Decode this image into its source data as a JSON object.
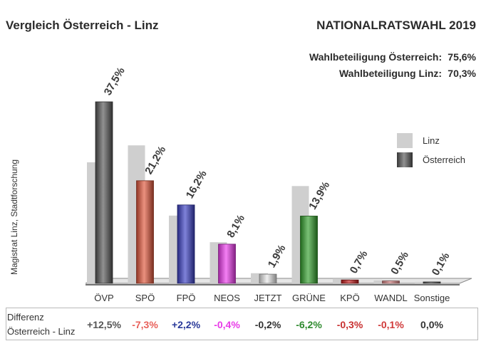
{
  "header": {
    "title_left": "Vergleich Österreich - Linz",
    "title_right": "NATIONALRATSWAHL 2019"
  },
  "turnout": {
    "austria_label": "Wahlbeteiligung Österreich:",
    "austria_value": "75,6%",
    "linz_label": "Wahlbeteiligung Linz:",
    "linz_value": "70,3%"
  },
  "side_label": "Magistrat Linz, Stadtforschung",
  "colors": {
    "linz": "#cfcfcf",
    "OEVP": "#555555",
    "SPOE": "#e0553a",
    "FPOE": "#3a3fc4",
    "NEOS": "#ee3bee",
    "JETZT": "#e8e8e8",
    "GRUENE": "#33a02c",
    "KPOE": "#c41a1a",
    "WANDL": "#e08a8a",
    "Sonstige": "#555555"
  },
  "chart_data": {
    "type": "bar",
    "categories": [
      "ÖVP",
      "SPÖ",
      "FPÖ",
      "NEOS",
      "JETZT",
      "GRÜNE",
      "KPÖ",
      "WANDL",
      "Sonstige"
    ],
    "series": [
      {
        "name": "Linz",
        "values": [
          25.0,
          28.5,
          14.0,
          8.5,
          2.1,
          20.1,
          1.0,
          0.6,
          0.1
        ]
      },
      {
        "name": "Österreich",
        "values": [
          37.5,
          21.2,
          16.2,
          8.1,
          1.9,
          13.9,
          0.7,
          0.5,
          0.1
        ]
      }
    ],
    "data_labels": [
      "37,5%",
      "21,2%",
      "16,2%",
      "8,1%",
      "1,9%",
      "13,9%",
      "0,7%",
      "0,5%",
      "0,1%"
    ],
    "ylim": [
      0,
      37.5
    ],
    "legend_position": "right",
    "grid": false
  },
  "difference": {
    "label_line1": "Differenz",
    "label_line2": "Österreich - Linz",
    "values": [
      {
        "text": "+12,5%",
        "color": "#555555"
      },
      {
        "text": "-7,3%",
        "color": "#e8605a"
      },
      {
        "text": "+2,2%",
        "color": "#2a3a9a"
      },
      {
        "text": "-0,4%",
        "color": "#e83be8"
      },
      {
        "text": "-0,2%",
        "color": "#333333"
      },
      {
        "text": "-6,2%",
        "color": "#2e8a2e"
      },
      {
        "text": "-0,3%",
        "color": "#c83030"
      },
      {
        "text": "-0,1%",
        "color": "#d03a3a"
      },
      {
        "text": "0,0%",
        "color": "#333333"
      }
    ]
  }
}
